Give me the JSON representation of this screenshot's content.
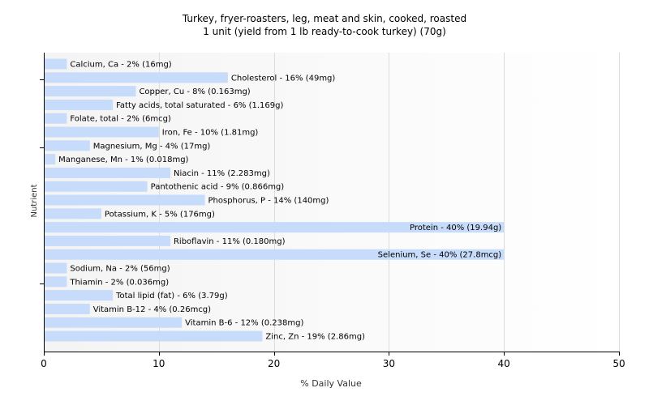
{
  "chart_data": {
    "type": "bar",
    "orientation": "horizontal",
    "title": "Turkey, fryer-roasters, leg, meat and skin, cooked, roasted",
    "subtitle": "1 unit (yield from 1 lb ready-to-cook turkey) (70g)",
    "xlabel": "% Daily Value",
    "ylabel": "Nutrient",
    "xlim": [
      0,
      50
    ],
    "xticks": [
      "0",
      "10",
      "20",
      "30",
      "40",
      "50"
    ],
    "grid": true,
    "bar_color": "#c6dcfa",
    "categories": [
      "Calcium, Ca",
      "Cholesterol",
      "Copper, Cu",
      "Fatty acids, total saturated",
      "Folate, total",
      "Iron, Fe",
      "Magnesium, Mg",
      "Manganese, Mn",
      "Niacin",
      "Pantothenic acid",
      "Phosphorus, P",
      "Potassium, K",
      "Protein",
      "Riboflavin",
      "Selenium, Se",
      "Sodium, Na",
      "Thiamin",
      "Total lipid (fat)",
      "Vitamin B-12",
      "Vitamin B-6",
      "Zinc, Zn"
    ],
    "values": [
      2,
      16,
      8,
      6,
      2,
      10,
      4,
      1,
      11,
      9,
      14,
      5,
      40,
      11,
      40,
      2,
      2,
      6,
      4,
      12,
      19
    ],
    "labels": [
      "Calcium, Ca - 2% (16mg)",
      "Cholesterol - 16% (49mg)",
      "Copper, Cu - 8% (0.163mg)",
      "Fatty acids, total saturated - 6% (1.169g)",
      "Folate, total - 2% (6mcg)",
      "Iron, Fe - 10% (1.81mg)",
      "Magnesium, Mg - 4% (17mg)",
      "Manganese, Mn - 1% (0.018mg)",
      "Niacin - 11% (2.283mg)",
      "Pantothenic acid - 9% (0.866mg)",
      "Phosphorus, P - 14% (140mg)",
      "Potassium, K - 5% (176mg)",
      "Protein - 40% (19.94g)",
      "Riboflavin - 11% (0.180mg)",
      "Selenium, Se - 40% (27.8mcg)",
      "Sodium, Na - 2% (56mg)",
      "Thiamin - 2% (0.036mg)",
      "Total lipid (fat) - 6% (3.79g)",
      "Vitamin B-12 - 4% (0.26mcg)",
      "Vitamin B-6 - 12% (0.238mg)",
      "Zinc, Zn - 19% (2.86mg)"
    ]
  }
}
